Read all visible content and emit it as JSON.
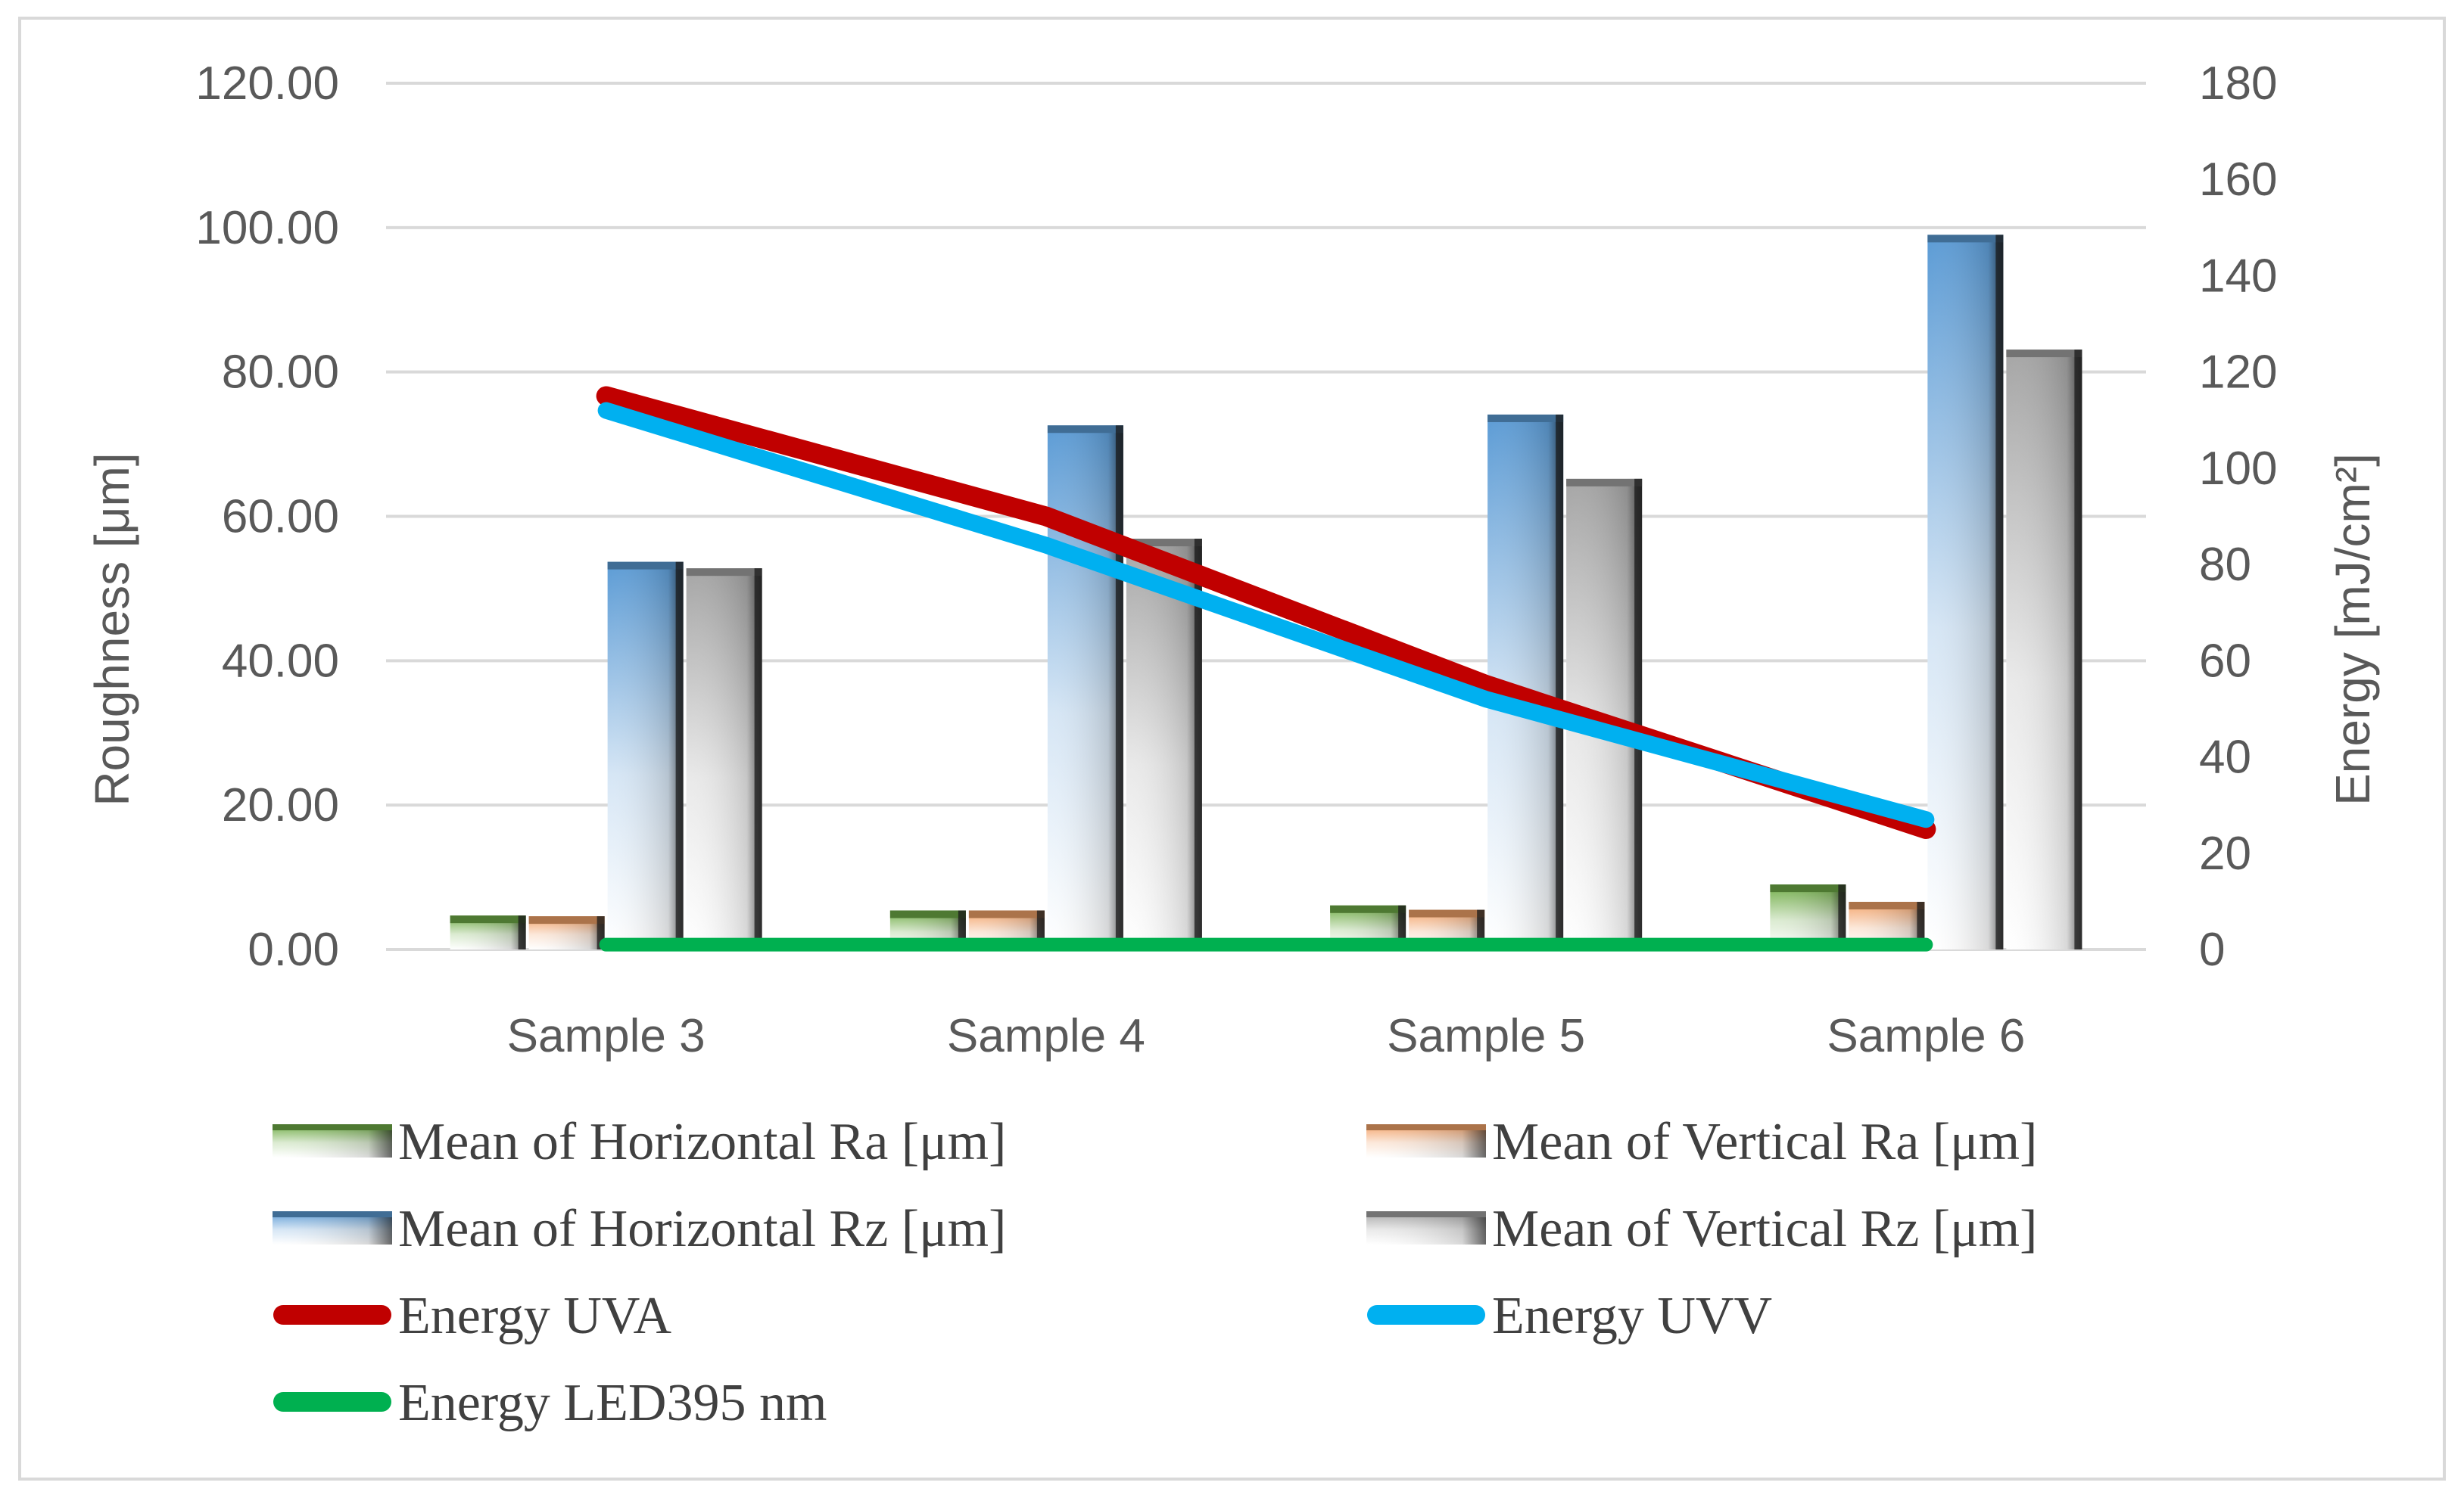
{
  "chart_data": {
    "type": "bar",
    "categories": [
      "Sample 3",
      "Sample 4",
      "Sample 5",
      "Sample 6"
    ],
    "series": [
      {
        "name": "Mean of Horizontal Ra [μm]",
        "kind": "bar",
        "axis": "left",
        "color": "#70ad47",
        "values": [
          4.7,
          5.4,
          6.1,
          9.0
        ]
      },
      {
        "name": "Mean of Vertical Ra [μm]",
        "kind": "bar",
        "axis": "left",
        "color": "#f4a46a",
        "values": [
          4.6,
          5.4,
          5.5,
          6.6
        ]
      },
      {
        "name": "Mean of Horizontal Rz [μm]",
        "kind": "bar",
        "axis": "left",
        "color": "#5b9bd5",
        "values": [
          53.7,
          72.6,
          74.1,
          99.0
        ]
      },
      {
        "name": "Mean of Vertical Rz [μm]",
        "kind": "bar",
        "axis": "left",
        "color": "#a5a5a5",
        "values": [
          52.8,
          56.9,
          65.2,
          83.1
        ]
      },
      {
        "name": "Energy UVA",
        "kind": "line",
        "axis": "right",
        "color": "#c00000",
        "values": [
          115,
          90,
          55,
          25
        ]
      },
      {
        "name": "Energy UVV",
        "kind": "line",
        "axis": "right",
        "color": "#00b0f0",
        "values": [
          112,
          84,
          52,
          27
        ]
      },
      {
        "name": "Energy LED395  nm",
        "kind": "line",
        "axis": "right",
        "color": "#00b050",
        "values": [
          1,
          1,
          1,
          1
        ]
      }
    ],
    "y_left": {
      "label": "Roughness [μm]",
      "range": [
        0,
        120
      ],
      "ticks": [
        "0.00",
        "20.00",
        "40.00",
        "60.00",
        "80.00",
        "100.00",
        "120.00"
      ]
    },
    "y_right": {
      "label": "Energy  [mJ/cm²]",
      "range": [
        0,
        180
      ],
      "ticks": [
        "0",
        "20",
        "40",
        "60",
        "80",
        "100",
        "120",
        "140",
        "160",
        "180"
      ]
    },
    "grid": true,
    "legend_position": "bottom",
    "title": "",
    "xlabel": ""
  }
}
